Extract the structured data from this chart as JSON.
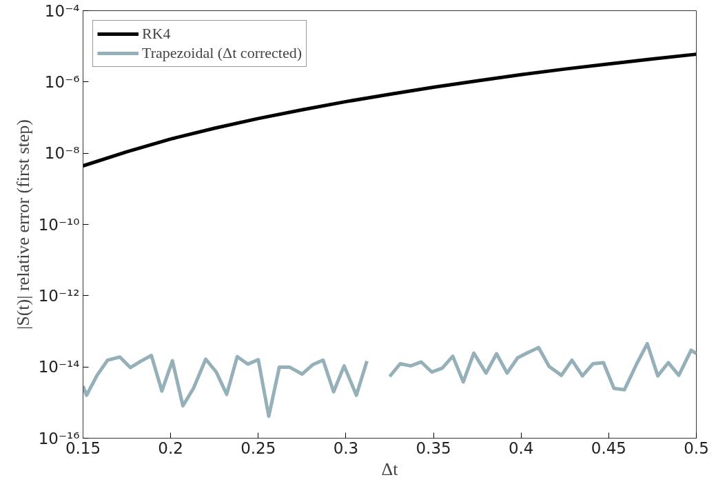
{
  "chart_data": {
    "type": "line",
    "xlabel": "Δt",
    "ylabel": "|S(t)| relative error (first step)",
    "log": "y",
    "xlim": [
      0.15,
      0.5
    ],
    "xticks": [
      0.15,
      0.2,
      0.25,
      0.3,
      0.35,
      0.4,
      0.45,
      0.5
    ],
    "ylim": [
      1e-16,
      0.0001
    ],
    "yticks": [
      {
        "value": 1e-16,
        "label": "10⁻¹⁶"
      },
      {
        "value": 1e-14,
        "label": "10⁻¹⁴"
      },
      {
        "value": 1e-12,
        "label": "10⁻¹²"
      },
      {
        "value": 1e-10,
        "label": "10⁻¹⁰"
      },
      {
        "value": 1e-08,
        "label": "10⁻⁸"
      },
      {
        "value": 1e-06,
        "label": "10⁻⁶"
      },
      {
        "value": 0.0001,
        "label": "10⁻⁴"
      }
    ],
    "grid": false,
    "legend": "top left",
    "line_style": "solid",
    "marker": "none",
    "series": [
      {
        "name": "RK4",
        "color": "#000000",
        "x": [
          0.15,
          0.175,
          0.2,
          0.225,
          0.25,
          0.275,
          0.3,
          0.325,
          0.35,
          0.375,
          0.4,
          0.425,
          0.45,
          0.475,
          0.5
        ],
        "values": [
          4.4e-09,
          1.1e-08,
          2.5e-08,
          5e-08,
          9.4e-08,
          1.65e-07,
          2.8e-07,
          4.5e-07,
          7.1e-07,
          1.07e-06,
          1.6e-06,
          2.3e-06,
          3.2e-06,
          4.4e-06,
          6e-06
        ]
      },
      {
        "name": "Trapezoidal (Δt corrected)",
        "color": "#95b0b9",
        "x": [
          0.15,
          0.152,
          0.158,
          0.164,
          0.171,
          0.177,
          0.183,
          0.189,
          0.195,
          0.201,
          0.207,
          0.213,
          0.22,
          0.226,
          0.232,
          0.238,
          0.244,
          0.25,
          0.256,
          0.262,
          0.268,
          0.275,
          0.281,
          0.287,
          0.293,
          0.299,
          0.306,
          0.312,
          0.318,
          0.325,
          0.331,
          0.337,
          0.343,
          0.349,
          0.355,
          0.361,
          0.367,
          0.373,
          0.38,
          0.386,
          0.392,
          0.398,
          0.404,
          0.41,
          0.416,
          0.423,
          0.429,
          0.435,
          0.441,
          0.447,
          0.453,
          0.459,
          0.466,
          0.472,
          0.478,
          0.484,
          0.49,
          0.497,
          0.5
        ],
        "values": [
          2.9e-15,
          1.6e-15,
          5.8e-15,
          1.55e-14,
          1.9e-14,
          9.6e-15,
          1.45e-14,
          2.1e-14,
          2.1e-15,
          1.5e-14,
          8.1e-16,
          2.5e-15,
          1.65e-14,
          7.2e-15,
          1.7e-15,
          1.95e-14,
          1.2e-14,
          1.6e-14,
          4.1e-16,
          9.8e-15,
          9.8e-15,
          6.3e-15,
          1.15e-14,
          1.55e-14,
          2e-15,
          1.07e-14,
          1.6e-15,
          1.45e-14,
          null,
          5.4e-15,
          1.23e-14,
          1.07e-14,
          1.38e-14,
          7.2e-15,
          9.3e-15,
          2e-14,
          3.8e-15,
          2.45e-14,
          6.7e-15,
          2.35e-14,
          6.7e-15,
          1.8e-14,
          2.55e-14,
          3.5e-14,
          1.03e-14,
          5.8e-15,
          1.55e-14,
          5.6e-15,
          1.23e-14,
          1.32e-14,
          2.5e-15,
          2.3e-15,
          1.23e-14,
          4.5e-14,
          5.6e-15,
          1.32e-14,
          5.8e-15,
          2.95e-14,
          2.35e-14
        ]
      }
    ]
  }
}
